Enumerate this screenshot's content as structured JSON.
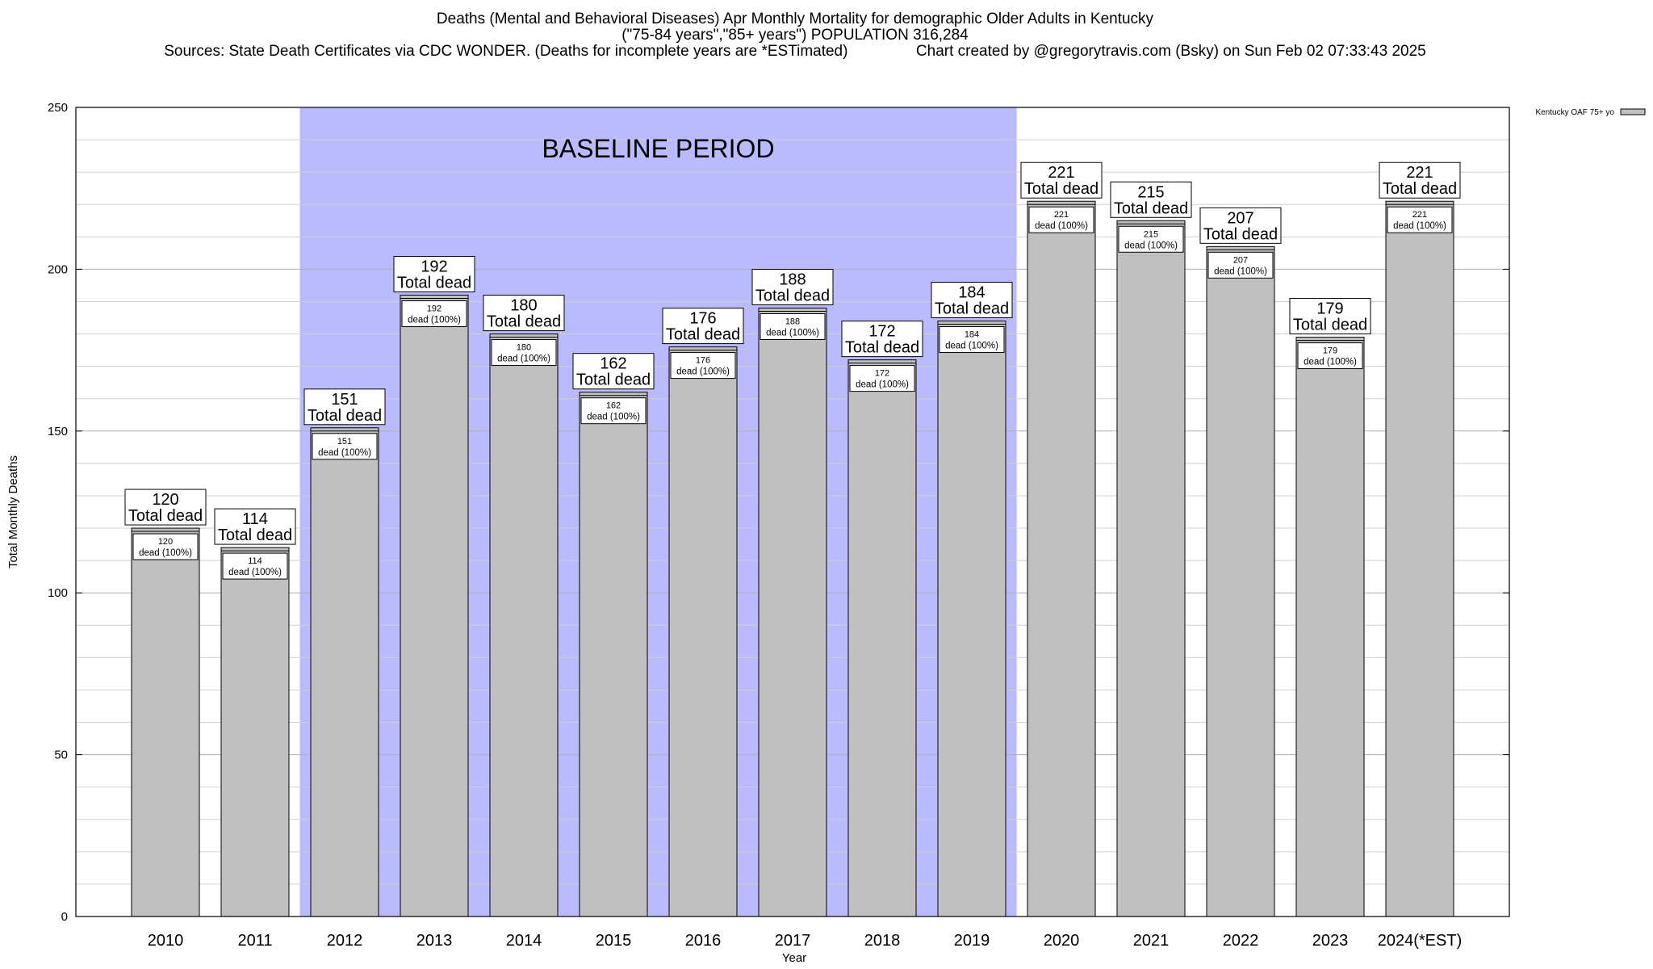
{
  "header": {
    "title_line1": "Deaths (Mental and Behavioral Diseases) Apr Monthly Mortality for demographic Older Adults in Kentucky",
    "title_line2": "(\"75-84 years\",\"85+ years\") POPULATION 316,284",
    "title_line3": "Sources: State Death Certificates via CDC WONDER. (Deaths for incomplete years are *ESTimated)                Chart created by @gregorytravis.com (Bsky) on Sun Feb 02 07:33:43 2025"
  },
  "chart_data": {
    "type": "bar",
    "xlabel": "Year",
    "ylabel": "Total Monthly Deaths",
    "ylim": [
      0,
      250
    ],
    "yticks": [
      "0",
      "50",
      "100",
      "150",
      "200",
      "250"
    ],
    "grid": true,
    "legend": {
      "placement": "top-right",
      "label": "Kentucky OAF 75+ yo",
      "color": "#c0c0c0"
    },
    "baseline": {
      "label": "BASELINE PERIOD",
      "from": "2012",
      "to": "2019",
      "color": "#babaff"
    },
    "categories": [
      "2010",
      "2011",
      "2012",
      "2013",
      "2014",
      "2015",
      "2016",
      "2017",
      "2018",
      "2019",
      "2020",
      "2021",
      "2022",
      "2023",
      "2024(*EST)"
    ],
    "series": [
      {
        "name": "Kentucky OAF 75+ yo",
        "values": [
          120,
          114,
          151,
          192,
          180,
          162,
          176,
          188,
          172,
          184,
          221,
          215,
          207,
          179,
          221
        ]
      }
    ],
    "label_total_text": "Total dead",
    "label_inner_text": "dead (100%)",
    "bar_color": "#c0c0c0"
  }
}
